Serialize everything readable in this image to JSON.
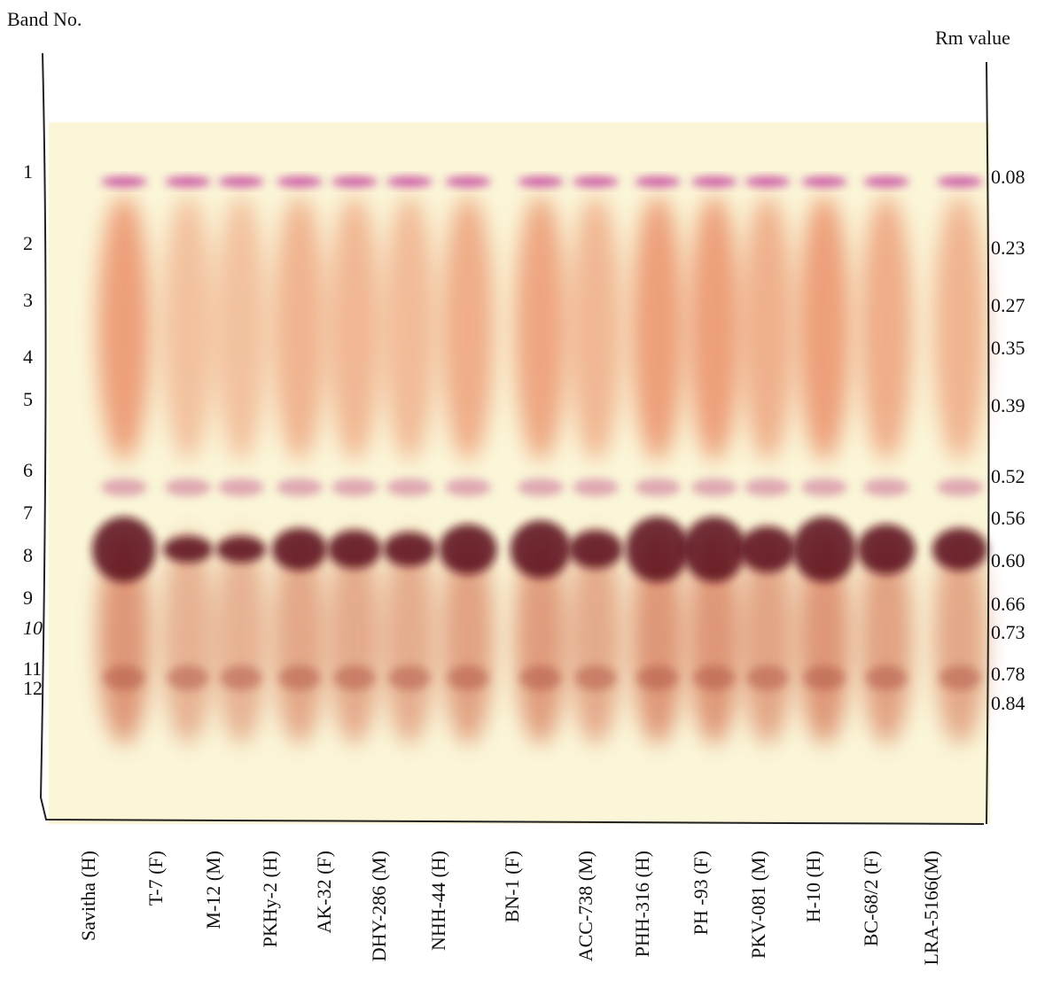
{
  "header": {
    "band_label": "Band No.",
    "rm_label": "Rm value"
  },
  "bands": [
    {
      "number": "1",
      "rm": "0.08"
    },
    {
      "number": "2",
      "rm": "0.23"
    },
    {
      "number": "3",
      "rm": "0.27"
    },
    {
      "number": "4",
      "rm": "0.35"
    },
    {
      "number": "5",
      "rm": "0.39"
    },
    {
      "number": "6",
      "rm": "0.52"
    },
    {
      "number": "7",
      "rm": "0.56"
    },
    {
      "number": "8",
      "rm": "0.60"
    },
    {
      "number": "9",
      "rm": "0.66"
    },
    {
      "number": "10",
      "rm": "0.73"
    },
    {
      "number": "11",
      "rm": "0.78"
    },
    {
      "number": "12",
      "rm": "0.84"
    }
  ],
  "lanes": [
    "Savitha (H)",
    "T-7 (F)",
    "M-12 (M)",
    "PKHy-2 (H)",
    "AK-32 (F)",
    "DHY-286 (M)",
    "NHH-44 (H)",
    "BN-1 (F)",
    "ACC-738 (M)",
    "PHH-316 (H)",
    "PH -93  (F)",
    "PKV-081 (M)",
    "H-10 (H)",
    "BC-68/2 (F)",
    "LRA-5166(M)"
  ]
}
